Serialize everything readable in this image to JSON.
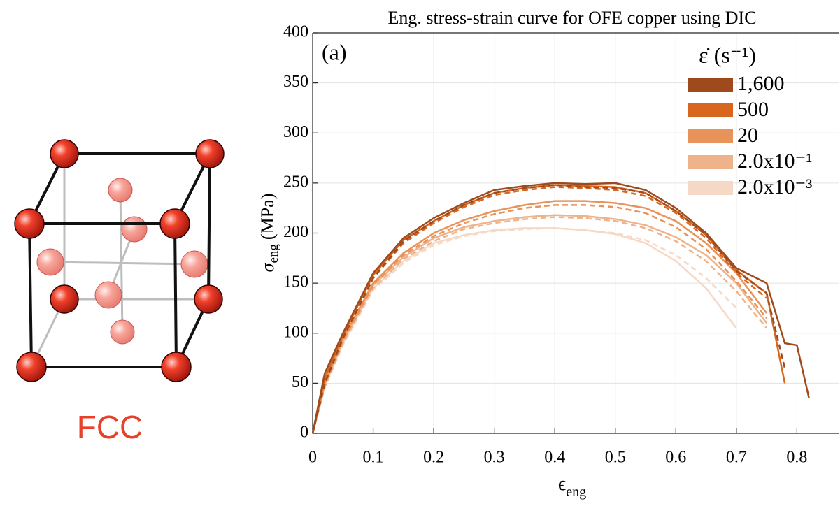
{
  "diagram": {
    "label": "FCC"
  },
  "chart_data": {
    "type": "line",
    "title": "Eng. stress-strain curve for OFE copper using DIC",
    "annotation": "(a)",
    "x_label": "ϵ",
    "x_label_sub": "eng",
    "y_label": "σ",
    "y_label_sub": "eng",
    "y_label_unit": "(MPa)",
    "legend_title": "ε̇ (s⁻¹)",
    "legend_position": "upper right",
    "grid": true,
    "xlim": [
      0,
      0.87
    ],
    "xticks": [
      0,
      0.1,
      0.2,
      0.3,
      0.4,
      0.5,
      0.6,
      0.7,
      0.8
    ],
    "ylim": [
      0,
      400
    ],
    "yticks": [
      0,
      50,
      100,
      150,
      200,
      250,
      300,
      350,
      400
    ],
    "x": [
      0,
      0.02,
      0.05,
      0.1,
      0.15,
      0.2,
      0.25,
      0.3,
      0.35,
      0.4,
      0.45,
      0.5,
      0.55,
      0.6,
      0.65,
      0.7,
      0.75,
      0.78,
      0.8,
      0.82
    ],
    "series": [
      {
        "name": "1,600",
        "color": "#9e4a1c",
        "values": [
          0,
          60,
          100,
          160,
          195,
          215,
          230,
          243,
          247,
          250,
          249,
          250,
          243,
          225,
          200,
          165,
          150,
          90,
          88,
          35
        ],
        "dashed_values": [
          0,
          50,
          95,
          155,
          192,
          212,
          228,
          240,
          245,
          248,
          246,
          245,
          240,
          222,
          198,
          162,
          140,
          65,
          null,
          null
        ]
      },
      {
        "name": "500",
        "color": "#d9661f",
        "values": [
          0,
          55,
          98,
          158,
          193,
          212,
          228,
          240,
          245,
          248,
          247,
          246,
          240,
          222,
          198,
          163,
          140,
          50,
          null,
          null
        ],
        "dashed_values": [
          0,
          50,
          95,
          155,
          190,
          210,
          226,
          238,
          243,
          246,
          245,
          243,
          237,
          220,
          195,
          160,
          135,
          null,
          null,
          null
        ]
      },
      {
        "name": "20",
        "color": "#e8935a",
        "values": [
          0,
          50,
          95,
          150,
          180,
          200,
          213,
          222,
          228,
          232,
          232,
          230,
          225,
          212,
          190,
          160,
          120,
          null,
          null,
          null
        ],
        "dashed_values": [
          0,
          48,
          92,
          148,
          178,
          197,
          210,
          219,
          225,
          228,
          228,
          226,
          220,
          206,
          184,
          152,
          115,
          null,
          null,
          null
        ]
      },
      {
        "name": "2.0x10⁻¹",
        "color": "#efb38b",
        "values": [
          0,
          48,
          92,
          148,
          176,
          195,
          206,
          212,
          216,
          218,
          217,
          214,
          208,
          196,
          178,
          150,
          110,
          null,
          null,
          null
        ],
        "dashed_values": [
          0,
          46,
          90,
          145,
          174,
          192,
          204,
          210,
          214,
          216,
          215,
          212,
          205,
          192,
          172,
          142,
          105,
          null,
          null,
          null
        ]
      },
      {
        "name": "2.0x10⁻³",
        "color": "#f5d9c6",
        "values": [
          0,
          48,
          90,
          145,
          172,
          190,
          198,
          203,
          205,
          205,
          203,
          199,
          190,
          172,
          145,
          105,
          null,
          null,
          null,
          null
        ],
        "dashed_values": [
          0,
          46,
          88,
          143,
          170,
          188,
          197,
          202,
          204,
          205,
          203,
          200,
          193,
          178,
          155,
          125,
          null,
          null,
          null,
          null
        ]
      }
    ]
  }
}
